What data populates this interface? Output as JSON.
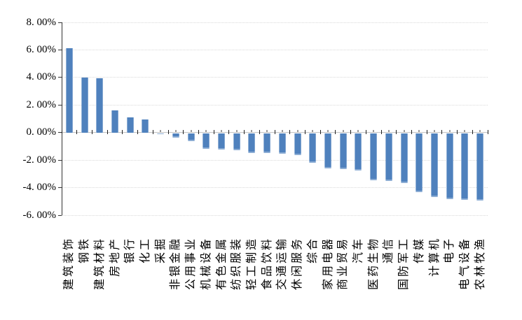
{
  "chart_data": {
    "type": "bar",
    "title": "",
    "xlabel": "",
    "ylabel": "",
    "legend": false,
    "grid": true,
    "bar_color": "#4f81bd",
    "ylim": [
      -6,
      8
    ],
    "ytick_values": [
      8,
      6,
      4,
      2,
      0,
      -2,
      -4,
      -6
    ],
    "ytick_labels": [
      "8. 00%",
      "6. 00%",
      "4. 00%",
      "2. 00%",
      "0. 00%",
      "-2. 00%",
      "-4. 00%",
      "-6. 00%"
    ],
    "categories": [
      "建筑装饰",
      "钢铁",
      "建筑材料",
      "房地产",
      "银行",
      "化工",
      "采掘",
      "非银金融",
      "公用事业",
      "机械设备",
      "有色金属",
      "纺织服装",
      "轻工制造",
      "食品饮料",
      "交通运输",
      "休闲服务",
      "综合",
      "家用电器",
      "商业贸易",
      "汽车",
      "医药生物",
      "通信",
      "国防军工",
      "传媒",
      "计算机",
      "电子",
      "电气设备",
      "农林牧渔"
    ],
    "values": [
      6.1,
      3.98,
      3.93,
      1.6,
      1.12,
      0.93,
      -0.02,
      -0.32,
      -0.57,
      -1.13,
      -1.18,
      -1.25,
      -1.43,
      -1.45,
      -1.5,
      -1.58,
      -2.16,
      -2.55,
      -2.6,
      -2.72,
      -3.43,
      -3.48,
      -3.6,
      -4.28,
      -4.63,
      -4.78,
      -4.83,
      -4.89
    ]
  },
  "colors": {
    "bar": "#4f81bd",
    "gridline": "#d9d9d9",
    "zero_axis": "#c3c3c3",
    "y_axis": "#333333",
    "text": "#000000"
  }
}
